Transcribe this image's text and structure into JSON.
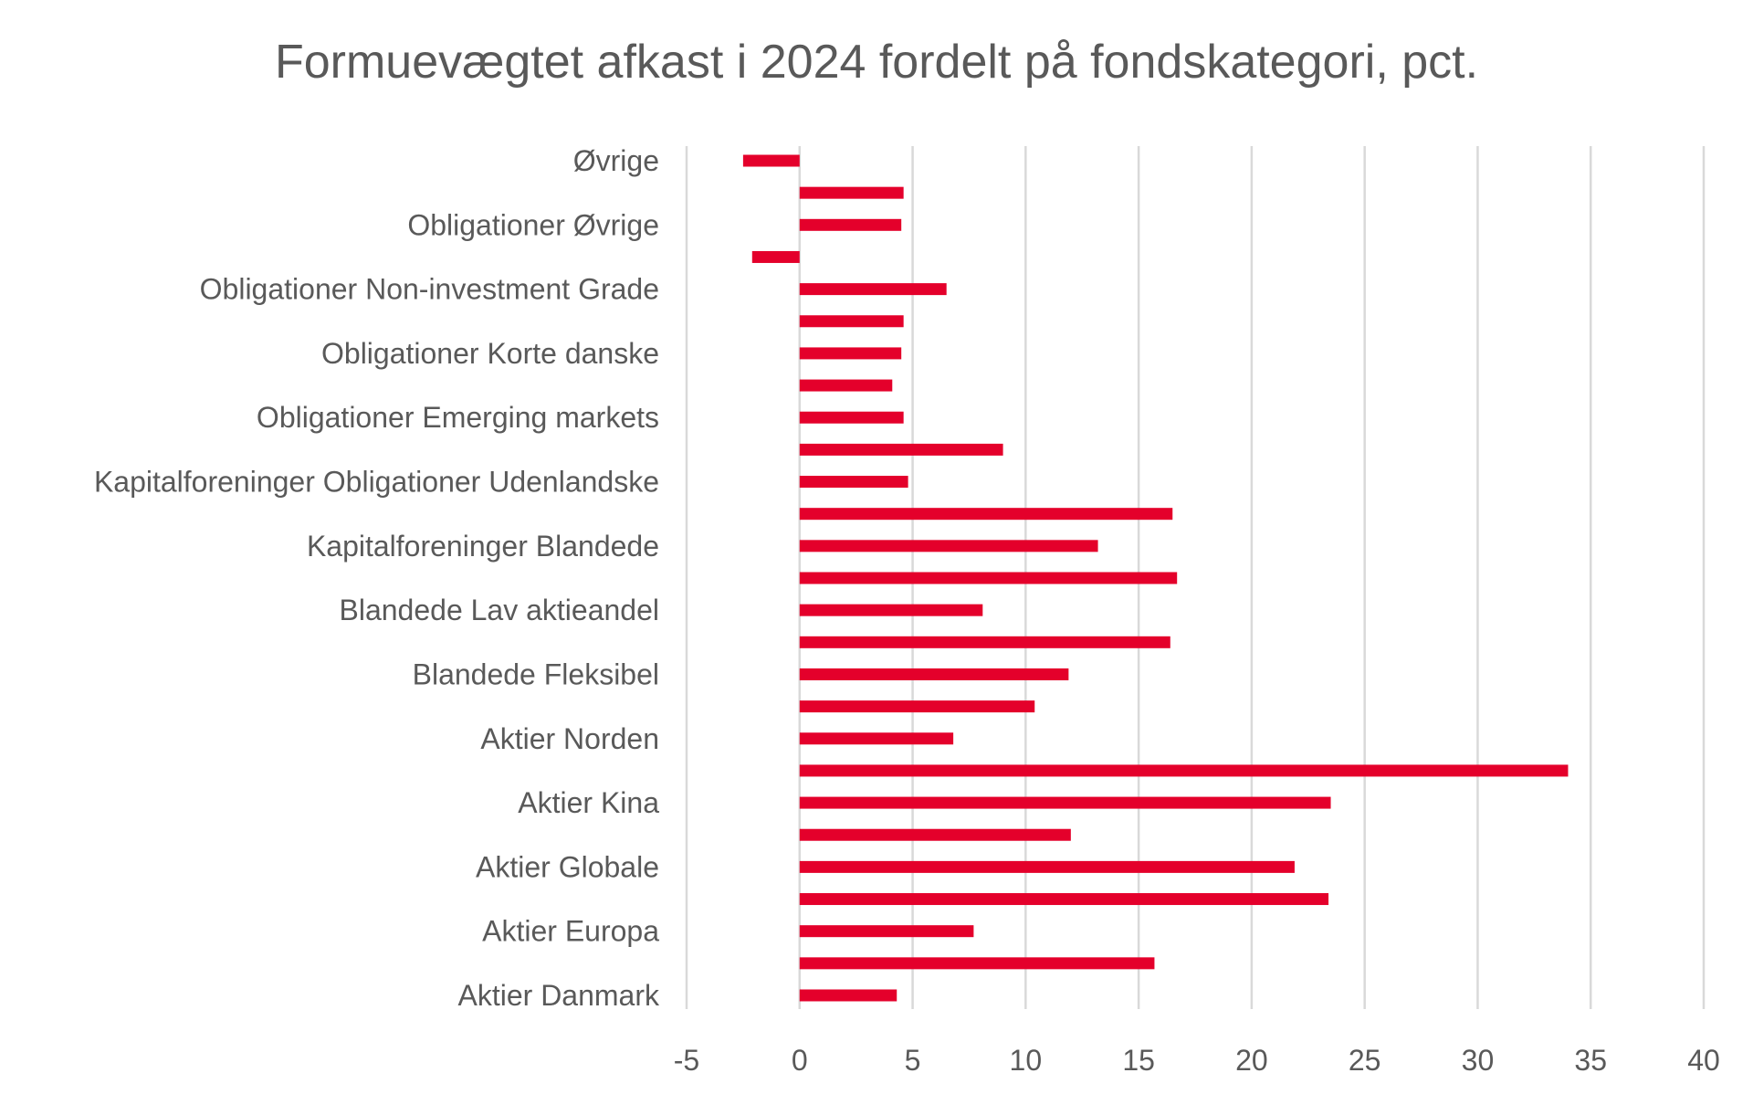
{
  "chart_data": {
    "type": "bar",
    "orientation": "horizontal",
    "title": "Formuevægtet afkast i 2024 fordelt på fondskategori, pct.",
    "xlabel": "",
    "ylabel": "",
    "xlim": [
      -5,
      40
    ],
    "xticks": [
      -5,
      0,
      5,
      10,
      15,
      20,
      25,
      30,
      35,
      40
    ],
    "grid": true,
    "legend": "none",
    "bar_color": "#e4002b",
    "categories": [
      "Øvrige",
      "",
      "Obligationer Øvrige",
      "",
      "Obligationer Non-investment Grade",
      "",
      "Obligationer Korte danske",
      "",
      "Obligationer Emerging markets",
      "",
      "Kapitalforeninger Obligationer Udenlandske",
      "",
      "Kapitalforeninger Blandede",
      "",
      "Blandede Lav aktieandel",
      "",
      "Blandede Fleksibel",
      "",
      "Aktier Norden",
      "",
      "Aktier Kina",
      "",
      "Aktier Globale",
      "",
      "Aktier Europa",
      "",
      "Aktier Danmark"
    ],
    "values": [
      -2.5,
      4.6,
      4.5,
      -2.1,
      6.5,
      4.6,
      4.5,
      4.1,
      4.6,
      9.0,
      4.8,
      16.5,
      13.2,
      16.7,
      8.1,
      16.4,
      11.9,
      10.4,
      6.8,
      34.0,
      23.5,
      12.0,
      21.9,
      23.4,
      7.7,
      15.7,
      4.3
    ]
  }
}
